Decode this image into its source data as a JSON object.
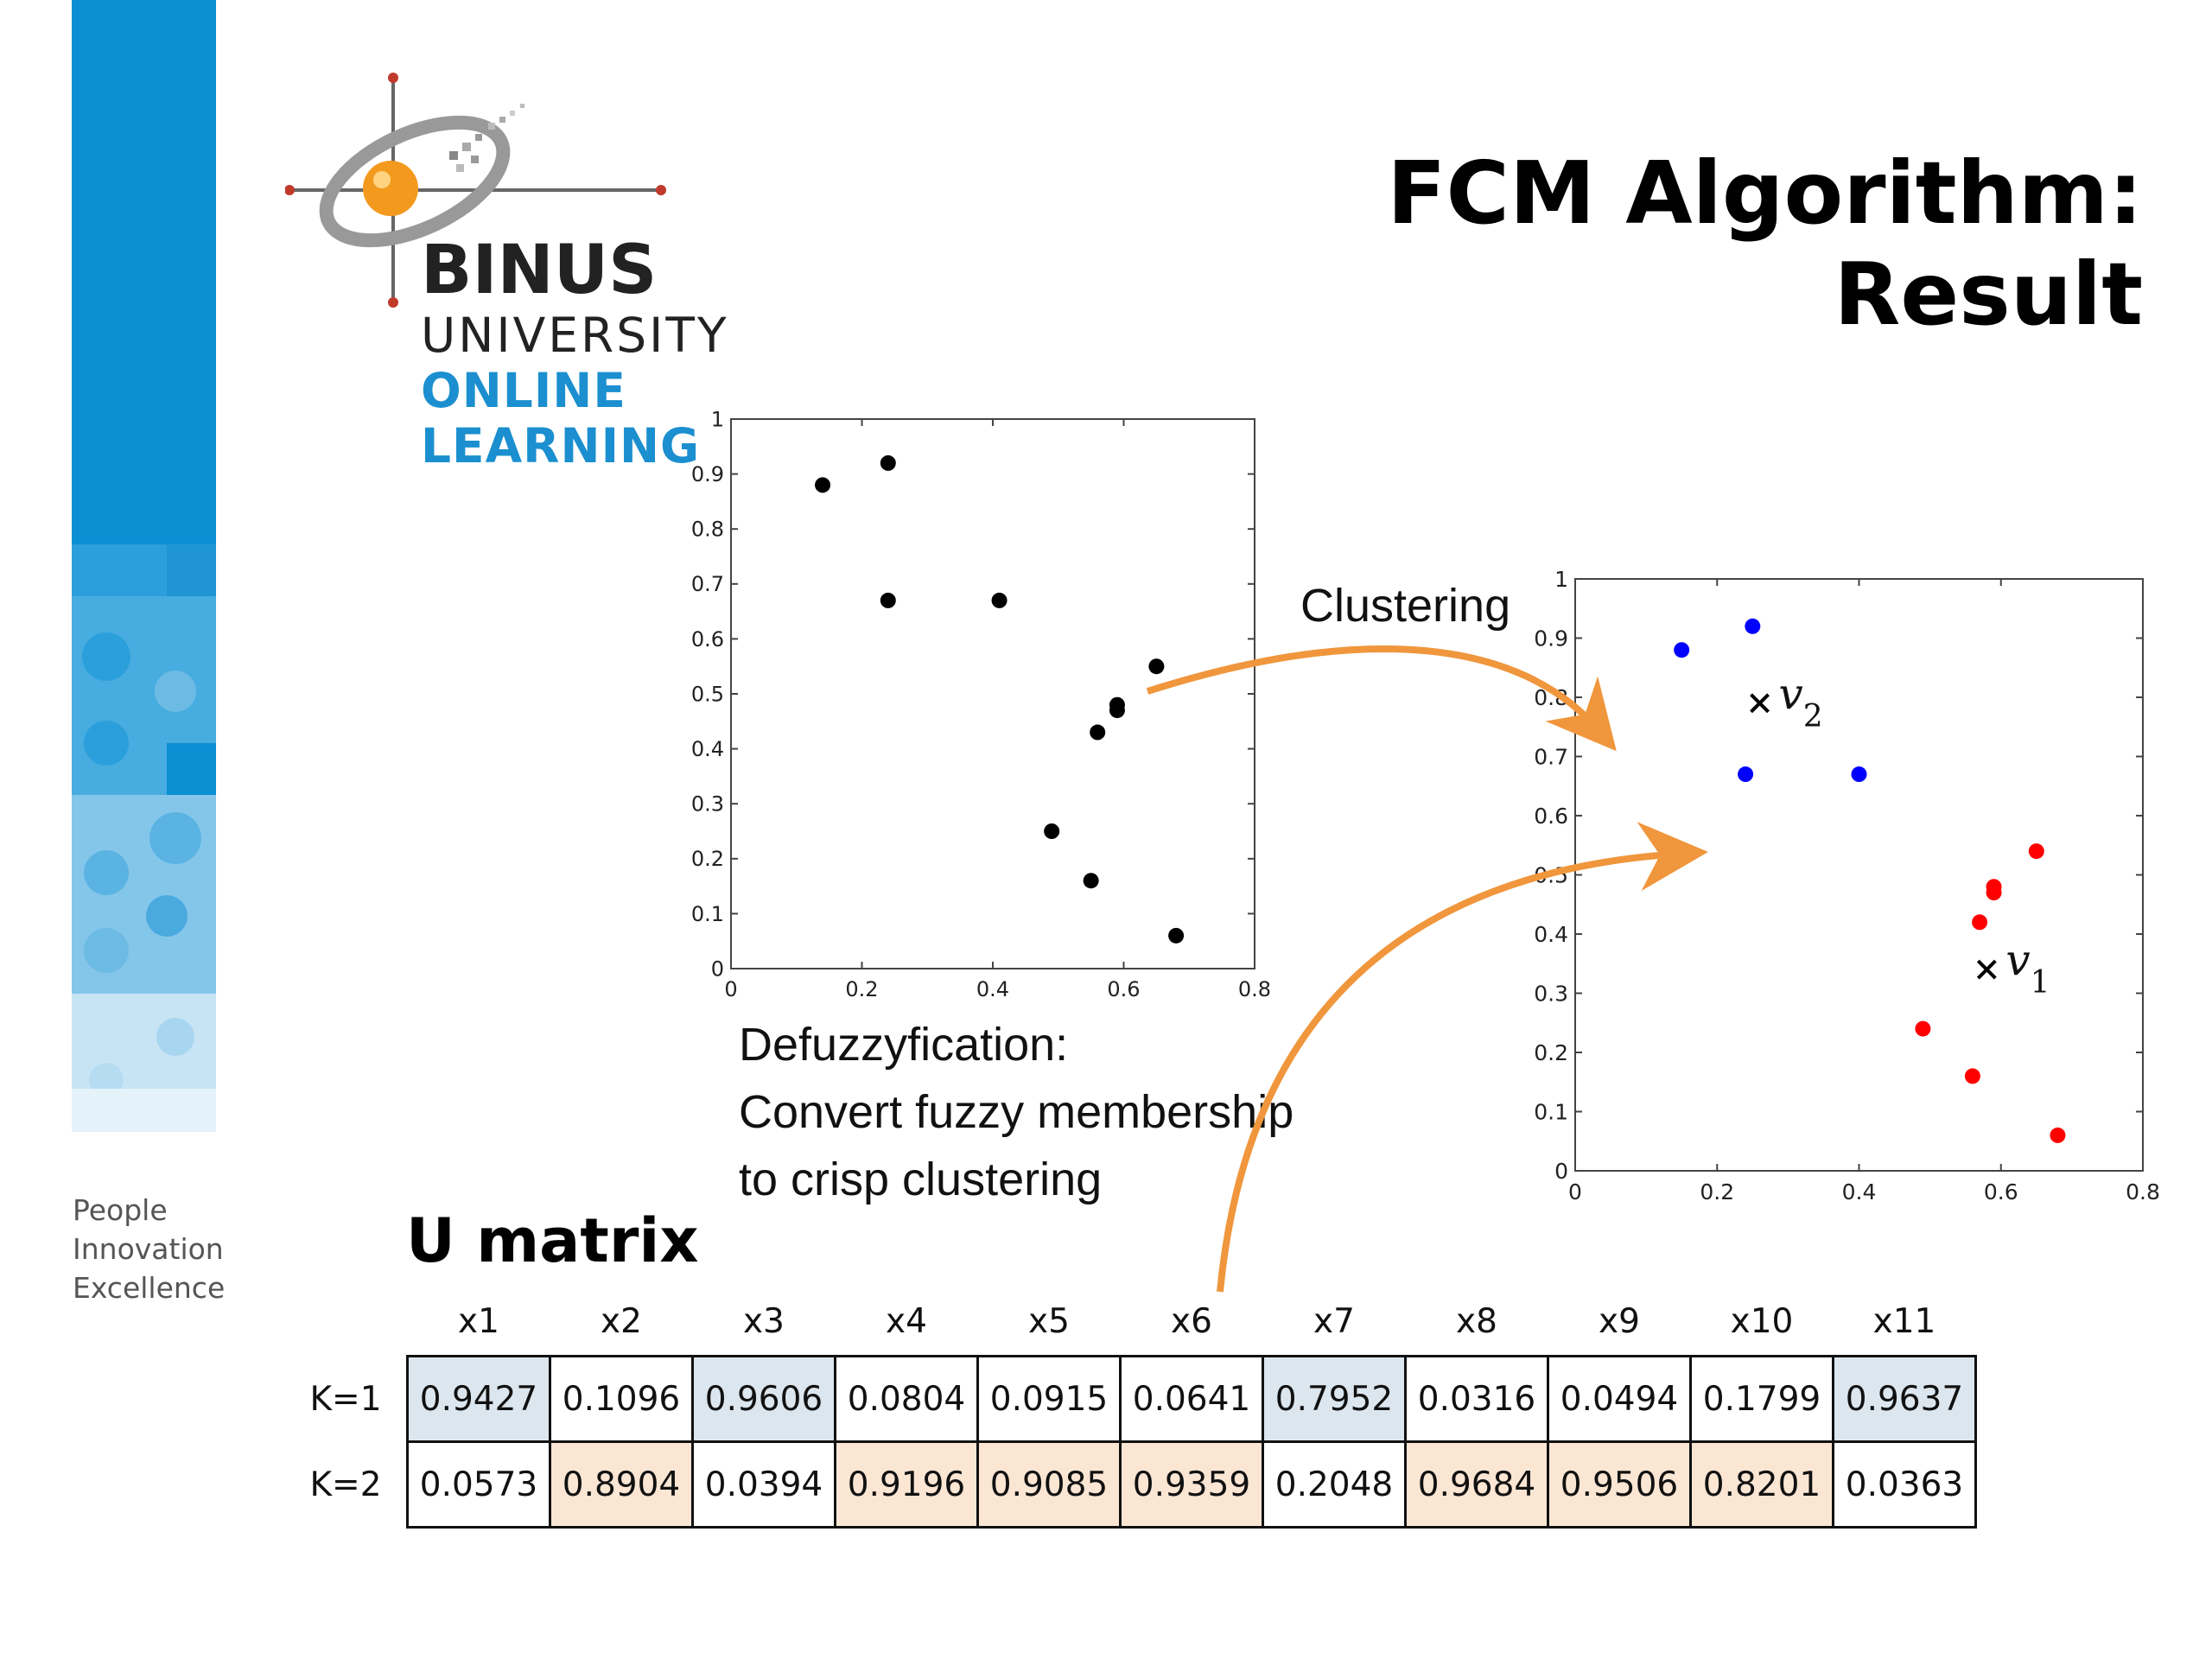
{
  "slide": {
    "title": "FCM Algorithm: Result",
    "logo": {
      "line1": "BINUS",
      "line2": "UNIVERSITY",
      "line3": "ONLINE",
      "line4": "LEARNING"
    },
    "tagline": [
      "People",
      "Innovation",
      "Excellence"
    ],
    "clustering_label": "Clustering",
    "defuzz_lines": [
      "Defuzzyfication:",
      "Convert fuzzy membership",
      "to crisp clustering"
    ],
    "umatrix_title": "U matrix",
    "colors": {
      "accent_orange": "#f0963c",
      "cluster1": "#ff0000",
      "cluster2": "#0000ff",
      "brand_blue": "#1b8fcf"
    }
  },
  "chart_data": [
    {
      "type": "scatter",
      "xlim": [
        0,
        0.8
      ],
      "ylim": [
        0,
        1
      ],
      "xticks": [
        "0",
        "0.2",
        "0.4",
        "0.6",
        "0.8"
      ],
      "yticks": [
        "0",
        "0.1",
        "0.2",
        "0.3",
        "0.4",
        "0.5",
        "0.6",
        "0.7",
        "0.8",
        "0.9",
        "1"
      ],
      "points": [
        [
          0.14,
          0.88
        ],
        [
          0.24,
          0.92
        ],
        [
          0.24,
          0.67
        ],
        [
          0.41,
          0.67
        ],
        [
          0.65,
          0.55
        ],
        [
          0.59,
          0.48
        ],
        [
          0.59,
          0.47
        ],
        [
          0.56,
          0.43
        ],
        [
          0.49,
          0.25
        ],
        [
          0.55,
          0.16
        ],
        [
          0.68,
          0.06
        ]
      ],
      "color": "#000000"
    },
    {
      "type": "scatter",
      "xlim": [
        0,
        0.8
      ],
      "ylim": [
        0,
        1
      ],
      "xticks": [
        "0",
        "0.2",
        "0.4",
        "0.6",
        "0.8"
      ],
      "yticks": [
        "0",
        "0.1",
        "0.2",
        "0.3",
        "0.4",
        "0.5",
        "0.6",
        "0.7",
        "0.8",
        "0.9",
        "1"
      ],
      "series": [
        {
          "values": [
            [
              0.15,
              0.88
            ],
            [
              0.25,
              0.92
            ],
            [
              0.24,
              0.67
            ],
            [
              0.4,
              0.67
            ]
          ],
          "color": "#0000ff"
        },
        {
          "values": [
            [
              0.65,
              0.54
            ],
            [
              0.59,
              0.48
            ],
            [
              0.59,
              0.47
            ],
            [
              0.57,
              0.42
            ],
            [
              0.49,
              0.24
            ],
            [
              0.56,
              0.16
            ],
            [
              0.68,
              0.06
            ]
          ],
          "color": "#ff0000"
        }
      ],
      "centers": [
        {
          "label": "v2",
          "x": 0.26,
          "y": 0.79
        },
        {
          "label": "v1",
          "x": 0.58,
          "y": 0.34
        }
      ]
    }
  ],
  "umatrix": {
    "columns": [
      "x1",
      "x2",
      "x3",
      "x4",
      "x5",
      "x6",
      "x7",
      "x8",
      "x9",
      "x10",
      "x11"
    ],
    "rows": [
      {
        "label": "K=1",
        "values": [
          "0.9427",
          "0.1096",
          "0.9606",
          "0.0804",
          "0.0915",
          "0.0641",
          "0.7952",
          "0.0316",
          "0.0494",
          "0.1799",
          "0.9637"
        ]
      },
      {
        "label": "K=2",
        "values": [
          "0.0573",
          "0.8904",
          "0.0394",
          "0.9196",
          "0.9085",
          "0.9359",
          "0.2048",
          "0.9684",
          "0.9506",
          "0.8201",
          "0.0363"
        ]
      }
    ],
    "highlight": [
      [
        "blue",
        "",
        "blue",
        "",
        "",
        "",
        "blue",
        "",
        "",
        "",
        "blue"
      ],
      [
        "",
        "orange",
        "",
        "orange",
        "orange",
        "orange",
        "",
        "orange",
        "orange",
        "orange",
        ""
      ]
    ]
  }
}
